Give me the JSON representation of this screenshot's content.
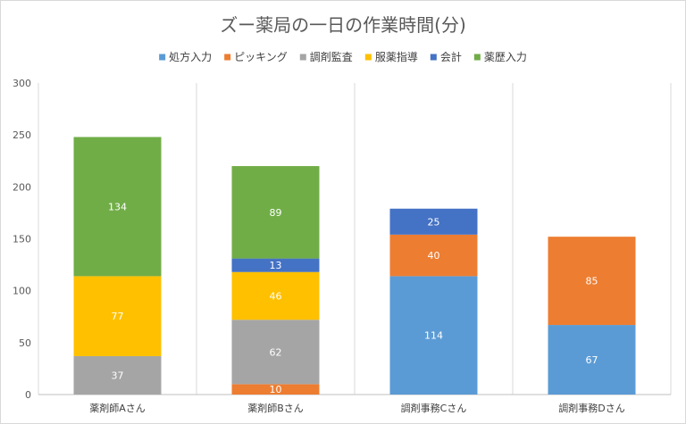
{
  "chart_data": {
    "type": "bar",
    "stacked": true,
    "title": "ズー薬局の一日の作業時間(分)",
    "categories": [
      "薬剤師Aさん",
      "薬剤師Bさん",
      "調剤事務Cさん",
      "調剤事務Dさん"
    ],
    "ylim": [
      0,
      300
    ],
    "yticks": [
      0,
      50,
      100,
      150,
      200,
      250,
      300
    ],
    "grid": "vertical-category-separators",
    "legend_position": "top",
    "series": [
      {
        "name": "処方入力",
        "color": "#5b9bd5",
        "values": [
          0,
          0,
          114,
          67
        ]
      },
      {
        "name": "ピッキング",
        "color": "#ed7d31",
        "values": [
          0,
          10,
          40,
          85
        ]
      },
      {
        "name": "調剤監査",
        "color": "#a5a5a5",
        "values": [
          37,
          62,
          0,
          0
        ]
      },
      {
        "name": "服薬指導",
        "color": "#ffc000",
        "values": [
          77,
          46,
          0,
          0
        ]
      },
      {
        "name": "会計",
        "color": "#4472c4",
        "values": [
          0,
          13,
          25,
          0
        ]
      },
      {
        "name": "薬歴入力",
        "color": "#70ad47",
        "values": [
          134,
          89,
          0,
          0
        ]
      }
    ]
  }
}
